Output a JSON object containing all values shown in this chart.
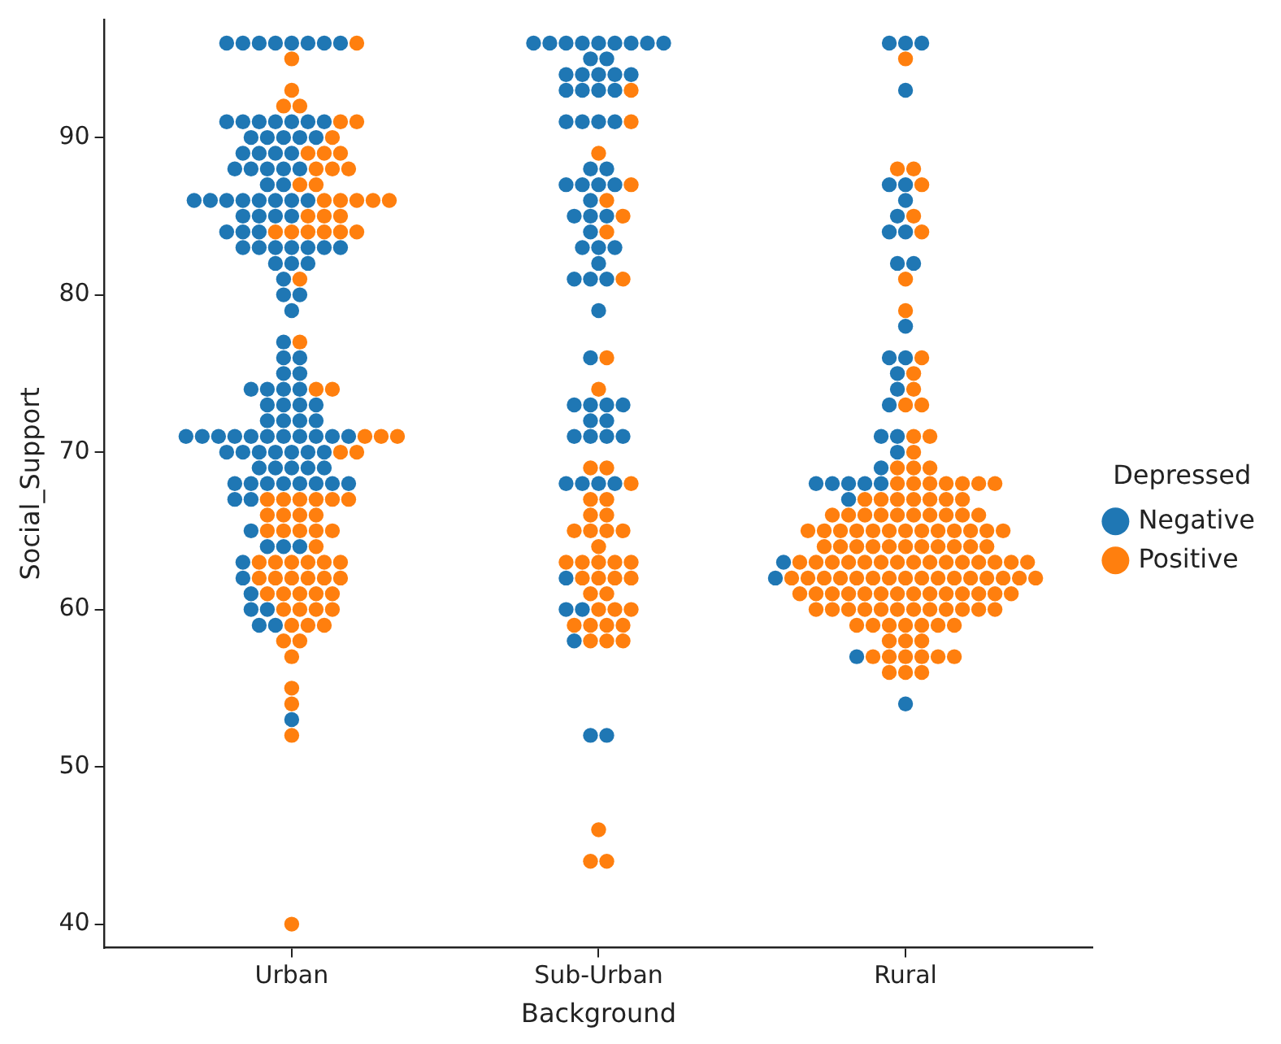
{
  "chart_data": {
    "type": "scatter",
    "xlabel": "Background",
    "ylabel": "Social_Support",
    "legend_title": "Depressed",
    "legend": "right",
    "grid": false,
    "marker": "circle",
    "categories": [
      "Urban",
      "Sub-Urban",
      "Rural"
    ],
    "ylim": [
      38.5,
      97.5
    ],
    "yticks": [
      40,
      50,
      60,
      70,
      80,
      90
    ],
    "series": [
      {
        "name": "Negative",
        "color": "#1f77b4",
        "x": [
          "Urban",
          "Urban",
          "Urban",
          "Urban",
          "Urban",
          "Urban",
          "Urban",
          "Urban",
          "Urban",
          "Urban",
          "Urban",
          "Urban",
          "Urban",
          "Urban",
          "Urban",
          "Urban",
          "Urban",
          "Urban",
          "Urban",
          "Urban",
          "Urban",
          "Urban",
          "Urban",
          "Urban",
          "Urban",
          "Urban",
          "Urban",
          "Urban",
          "Urban",
          "Urban",
          "Urban",
          "Urban",
          "Urban",
          "Urban",
          "Urban",
          "Urban",
          "Urban",
          "Urban",
          "Urban",
          "Urban",
          "Urban",
          "Urban",
          "Urban",
          "Urban",
          "Urban",
          "Urban",
          "Urban",
          "Urban",
          "Urban",
          "Urban",
          "Urban",
          "Urban",
          "Urban",
          "Urban",
          "Urban",
          "Urban",
          "Urban",
          "Urban",
          "Urban",
          "Urban",
          "Urban",
          "Urban",
          "Urban",
          "Urban",
          "Urban",
          "Urban",
          "Urban",
          "Urban",
          "Urban",
          "Urban",
          "Urban",
          "Urban",
          "Urban",
          "Urban",
          "Urban",
          "Urban",
          "Urban",
          "Urban",
          "Urban",
          "Urban",
          "Urban",
          "Urban",
          "Urban",
          "Urban",
          "Urban",
          "Urban",
          "Urban",
          "Urban",
          "Urban",
          "Urban",
          "Urban",
          "Urban",
          "Urban",
          "Urban",
          "Urban",
          "Urban",
          "Urban",
          "Urban",
          "Urban",
          "Urban",
          "Urban",
          "Urban",
          "Urban",
          "Urban",
          "Urban",
          "Urban",
          "Urban",
          "Urban",
          "Urban",
          "Urban",
          "Urban",
          "Urban",
          "Urban",
          "Urban",
          "Urban",
          "Urban",
          "Urban",
          "Urban",
          "Urban",
          "Urban",
          "Urban",
          "Urban",
          "Sub-Urban",
          "Sub-Urban",
          "Sub-Urban",
          "Sub-Urban",
          "Sub-Urban",
          "Sub-Urban",
          "Sub-Urban",
          "Sub-Urban",
          "Sub-Urban",
          "Sub-Urban",
          "Sub-Urban",
          "Sub-Urban",
          "Sub-Urban",
          "Sub-Urban",
          "Sub-Urban",
          "Sub-Urban",
          "Sub-Urban",
          "Sub-Urban",
          "Sub-Urban",
          "Sub-Urban",
          "Sub-Urban",
          "Sub-Urban",
          "Sub-Urban",
          "Sub-Urban",
          "Sub-Urban",
          "Sub-Urban",
          "Sub-Urban",
          "Sub-Urban",
          "Sub-Urban",
          "Sub-Urban",
          "Sub-Urban",
          "Sub-Urban",
          "Sub-Urban",
          "Sub-Urban",
          "Sub-Urban",
          "Sub-Urban",
          "Sub-Urban",
          "Sub-Urban",
          "Sub-Urban",
          "Sub-Urban",
          "Sub-Urban",
          "Sub-Urban",
          "Sub-Urban",
          "Sub-Urban",
          "Sub-Urban",
          "Sub-Urban",
          "Sub-Urban",
          "Sub-Urban",
          "Sub-Urban",
          "Sub-Urban",
          "Sub-Urban",
          "Sub-Urban",
          "Sub-Urban",
          "Sub-Urban",
          "Sub-Urban",
          "Sub-Urban",
          "Sub-Urban",
          "Sub-Urban",
          "Sub-Urban",
          "Sub-Urban",
          "Sub-Urban",
          "Sub-Urban",
          "Sub-Urban",
          "Sub-Urban",
          "Rural",
          "Rural",
          "Rural",
          "Rural",
          "Rural",
          "Rural",
          "Rural",
          "Rural",
          "Rural",
          "Rural",
          "Rural",
          "Rural",
          "Rural",
          "Rural",
          "Rural",
          "Rural",
          "Rural",
          "Rural",
          "Rural",
          "Rural",
          "Rural",
          "Rural",
          "Rural",
          "Rural",
          "Rural",
          "Rural",
          "Rural",
          "Rural",
          "Rural",
          "Rural",
          "Rural",
          "Rural"
        ],
        "values": [
          96,
          96,
          96,
          96,
          96,
          96,
          96,
          96,
          91,
          91,
          91,
          91,
          91,
          91,
          91,
          90,
          90,
          90,
          90,
          90,
          89,
          89,
          89,
          89,
          88,
          88,
          88,
          88,
          88,
          87,
          87,
          86,
          86,
          86,
          86,
          86,
          86,
          86,
          86,
          85,
          85,
          85,
          85,
          84,
          84,
          84,
          83,
          83,
          83,
          83,
          83,
          83,
          83,
          82,
          82,
          82,
          81,
          80,
          80,
          79,
          77,
          76,
          76,
          75,
          75,
          74,
          74,
          74,
          74,
          73,
          73,
          73,
          73,
          72,
          72,
          72,
          72,
          71,
          71,
          71,
          71,
          71,
          71,
          71,
          71,
          71,
          71,
          71,
          70,
          70,
          70,
          70,
          70,
          70,
          70,
          69,
          69,
          69,
          69,
          69,
          68,
          68,
          68,
          68,
          68,
          68,
          68,
          68,
          67,
          67,
          65,
          64,
          64,
          64,
          63,
          62,
          61,
          60,
          60,
          59,
          59,
          53,
          96,
          96,
          96,
          96,
          96,
          96,
          96,
          96,
          96,
          95,
          95,
          94,
          94,
          94,
          94,
          94,
          93,
          93,
          93,
          93,
          91,
          91,
          91,
          91,
          88,
          88,
          87,
          87,
          87,
          87,
          86,
          85,
          85,
          85,
          84,
          83,
          83,
          83,
          82,
          81,
          81,
          81,
          79,
          76,
          73,
          73,
          73,
          73,
          72,
          72,
          71,
          71,
          71,
          71,
          68,
          68,
          68,
          68,
          62,
          60,
          60,
          58,
          52,
          52,
          96,
          96,
          96,
          93,
          87,
          87,
          86,
          85,
          84,
          84,
          82,
          82,
          78,
          76,
          76,
          75,
          74,
          73,
          71,
          71,
          70,
          69,
          68,
          68,
          68,
          68,
          68,
          67,
          63,
          62,
          57,
          54
        ]
      },
      {
        "name": "Positive",
        "color": "#ff7f0e",
        "x": [
          "Urban",
          "Urban",
          "Urban",
          "Urban",
          "Urban",
          "Urban",
          "Urban",
          "Urban",
          "Urban",
          "Urban",
          "Urban",
          "Urban",
          "Urban",
          "Urban",
          "Urban",
          "Urban",
          "Urban",
          "Urban",
          "Urban",
          "Urban",
          "Urban",
          "Urban",
          "Urban",
          "Urban",
          "Urban",
          "Urban",
          "Urban",
          "Urban",
          "Urban",
          "Urban",
          "Urban",
          "Urban",
          "Urban",
          "Urban",
          "Urban",
          "Urban",
          "Urban",
          "Urban",
          "Urban",
          "Urban",
          "Urban",
          "Urban",
          "Urban",
          "Urban",
          "Urban",
          "Urban",
          "Urban",
          "Urban",
          "Urban",
          "Urban",
          "Urban",
          "Urban",
          "Urban",
          "Urban",
          "Urban",
          "Urban",
          "Urban",
          "Urban",
          "Urban",
          "Urban",
          "Urban",
          "Urban",
          "Urban",
          "Urban",
          "Urban",
          "Urban",
          "Urban",
          "Urban",
          "Urban",
          "Urban",
          "Urban",
          "Urban",
          "Urban",
          "Urban",
          "Urban",
          "Urban",
          "Urban",
          "Urban",
          "Urban",
          "Urban",
          "Urban",
          "Urban",
          "Urban",
          "Urban",
          "Urban",
          "Urban",
          "Sub-Urban",
          "Sub-Urban",
          "Sub-Urban",
          "Sub-Urban",
          "Sub-Urban",
          "Sub-Urban",
          "Sub-Urban",
          "Sub-Urban",
          "Sub-Urban",
          "Sub-Urban",
          "Sub-Urban",
          "Sub-Urban",
          "Sub-Urban",
          "Sub-Urban",
          "Sub-Urban",
          "Sub-Urban",
          "Sub-Urban",
          "Sub-Urban",
          "Sub-Urban",
          "Sub-Urban",
          "Sub-Urban",
          "Sub-Urban",
          "Sub-Urban",
          "Sub-Urban",
          "Sub-Urban",
          "Sub-Urban",
          "Sub-Urban",
          "Sub-Urban",
          "Sub-Urban",
          "Sub-Urban",
          "Sub-Urban",
          "Sub-Urban",
          "Sub-Urban",
          "Sub-Urban",
          "Sub-Urban",
          "Sub-Urban",
          "Sub-Urban",
          "Sub-Urban",
          "Sub-Urban",
          "Sub-Urban",
          "Sub-Urban",
          "Sub-Urban",
          "Sub-Urban",
          "Sub-Urban",
          "Sub-Urban",
          "Sub-Urban",
          "Rural",
          "Rural",
          "Rural",
          "Rural",
          "Rural",
          "Rural",
          "Rural",
          "Rural",
          "Rural",
          "Rural",
          "Rural",
          "Rural",
          "Rural",
          "Rural",
          "Rural",
          "Rural",
          "Rural",
          "Rural",
          "Rural",
          "Rural",
          "Rural",
          "Rural",
          "Rural",
          "Rural",
          "Rural",
          "Rural",
          "Rural",
          "Rural",
          "Rural",
          "Rural",
          "Rural",
          "Rural",
          "Rural",
          "Rural",
          "Rural",
          "Rural",
          "Rural",
          "Rural",
          "Rural",
          "Rural",
          "Rural",
          "Rural",
          "Rural",
          "Rural",
          "Rural",
          "Rural",
          "Rural",
          "Rural",
          "Rural",
          "Rural",
          "Rural",
          "Rural",
          "Rural",
          "Rural",
          "Rural",
          "Rural",
          "Rural",
          "Rural",
          "Rural",
          "Rural",
          "Rural",
          "Rural",
          "Rural",
          "Rural",
          "Rural",
          "Rural",
          "Rural",
          "Rural",
          "Rural",
          "Rural",
          "Rural",
          "Rural",
          "Rural",
          "Rural",
          "Rural",
          "Rural",
          "Rural",
          "Rural",
          "Rural",
          "Rural",
          "Rural",
          "Rural",
          "Rural",
          "Rural",
          "Rural",
          "Rural",
          "Rural",
          "Rural",
          "Rural",
          "Rural",
          "Rural",
          "Rural",
          "Rural",
          "Rural",
          "Rural",
          "Rural",
          "Rural",
          "Rural",
          "Rural",
          "Rural",
          "Rural",
          "Rural",
          "Rural",
          "Rural",
          "Rural",
          "Rural",
          "Rural",
          "Rural",
          "Rural",
          "Rural",
          "Rural",
          "Rural",
          "Rural",
          "Rural",
          "Rural",
          "Rural",
          "Rural",
          "Rural",
          "Rural",
          "Rural",
          "Rural",
          "Rural",
          "Rural",
          "Rural",
          "Rural",
          "Rural",
          "Rural",
          "Rural",
          "Rural",
          "Rural",
          "Rural",
          "Rural",
          "Rural",
          "Rural",
          "Rural",
          "Rural",
          "Rural",
          "Rural",
          "Rural",
          "Rural",
          "Rural",
          "Rural",
          "Rural"
        ],
        "values": [
          96,
          95,
          93,
          92,
          92,
          91,
          91,
          90,
          89,
          89,
          89,
          88,
          88,
          88,
          87,
          87,
          86,
          86,
          86,
          86,
          86,
          85,
          85,
          85,
          84,
          84,
          84,
          84,
          84,
          84,
          81,
          77,
          74,
          74,
          71,
          71,
          71,
          70,
          70,
          67,
          67,
          67,
          67,
          67,
          67,
          66,
          66,
          66,
          66,
          65,
          65,
          65,
          65,
          65,
          64,
          63,
          63,
          63,
          63,
          63,
          63,
          62,
          62,
          62,
          62,
          62,
          62,
          61,
          61,
          61,
          61,
          61,
          60,
          60,
          60,
          60,
          59,
          59,
          59,
          58,
          58,
          57,
          55,
          54,
          52,
          40,
          93,
          91,
          89,
          87,
          86,
          85,
          84,
          81,
          76,
          74,
          69,
          69,
          68,
          67,
          67,
          66,
          66,
          65,
          65,
          65,
          65,
          64,
          63,
          63,
          63,
          63,
          63,
          62,
          62,
          62,
          62,
          61,
          61,
          60,
          60,
          60,
          59,
          59,
          59,
          59,
          58,
          58,
          58,
          46,
          44,
          44,
          95,
          88,
          88,
          87,
          85,
          84,
          81,
          79,
          76,
          75,
          74,
          73,
          73,
          71,
          71,
          70,
          69,
          69,
          69,
          68,
          68,
          68,
          68,
          68,
          68,
          68,
          67,
          67,
          67,
          67,
          67,
          67,
          67,
          66,
          66,
          66,
          66,
          66,
          66,
          66,
          66,
          66,
          66,
          65,
          65,
          65,
          65,
          65,
          65,
          65,
          65,
          65,
          65,
          65,
          65,
          65,
          64,
          64,
          64,
          64,
          64,
          64,
          64,
          64,
          64,
          64,
          64,
          63,
          63,
          63,
          63,
          63,
          63,
          63,
          63,
          63,
          63,
          63,
          63,
          63,
          63,
          63,
          62,
          62,
          62,
          62,
          62,
          62,
          62,
          62,
          62,
          62,
          62,
          62,
          62,
          62,
          62,
          62,
          61,
          61,
          61,
          61,
          61,
          61,
          61,
          61,
          61,
          61,
          61,
          61,
          61,
          61,
          60,
          60,
          60,
          60,
          60,
          60,
          60,
          60,
          60,
          60,
          60,
          60,
          59,
          59,
          59,
          59,
          59,
          59,
          59,
          58,
          58,
          58,
          57,
          57,
          57,
          57,
          57,
          57,
          56,
          56,
          56
        ]
      }
    ]
  }
}
